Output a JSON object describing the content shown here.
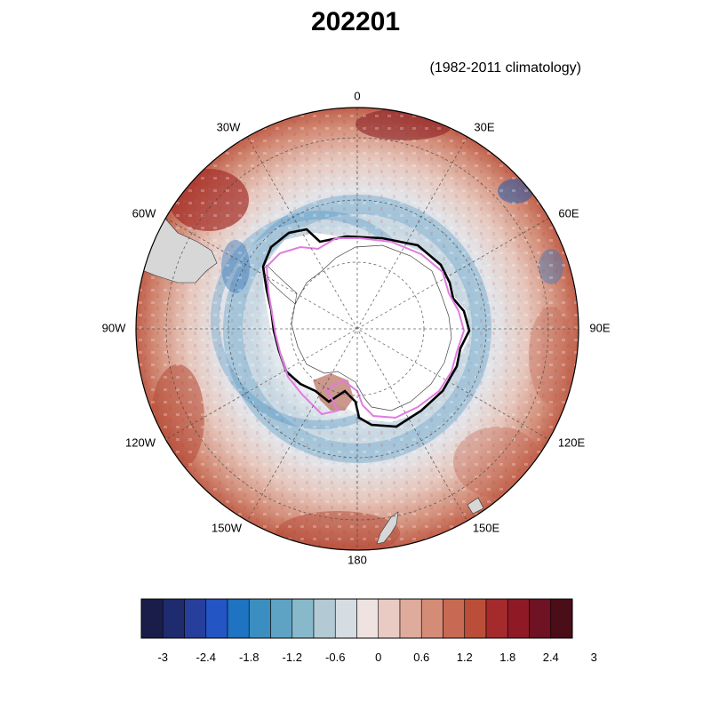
{
  "title": "202201",
  "subtitle": "(1982-2011 climatology)",
  "longitude_labels": {
    "lon_0": "0",
    "lon_30E": "30E",
    "lon_60E": "60E",
    "lon_90E": "90E",
    "lon_120E": "120E",
    "lon_150E": "150E",
    "lon_180": "180",
    "lon_150W": "150W",
    "lon_120W": "120W",
    "lon_90W": "90W",
    "lon_60W": "60W",
    "lon_30W": "30W"
  },
  "colorbar": {
    "min": -3.3,
    "max": 3.3,
    "colors": [
      "#1a1d4a",
      "#1f2b6f",
      "#263f9c",
      "#2355c4",
      "#1e73c2",
      "#3b8fc0",
      "#5ea3c4",
      "#88b9cb",
      "#b3cad4",
      "#d6dde2",
      "#eee3e1",
      "#eacbc4",
      "#dfab9c",
      "#d48c76",
      "#c86a53",
      "#bb4e38",
      "#a42a2c",
      "#8f1a26",
      "#6e1224",
      "#4b0d18"
    ],
    "tick_labels": [
      "-3",
      "-2.4",
      "-1.8",
      "-1.2",
      "-0.6",
      "0",
      "0.6",
      "1.2",
      "1.8",
      "2.4",
      "3"
    ]
  }
}
